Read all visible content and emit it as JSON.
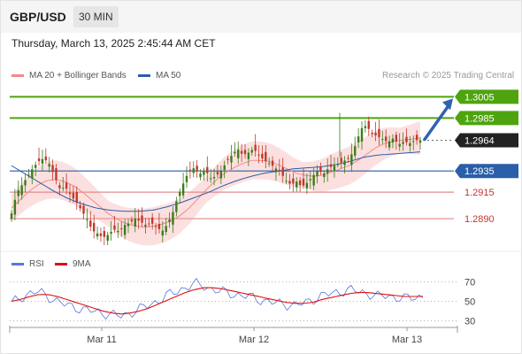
{
  "header": {
    "symbol": "GBP/USD",
    "timeframe": "30 MIN"
  },
  "datetime": "Thursday, March 13, 2025 2:45:44 AM CET",
  "legend": {
    "main": [
      {
        "label": "MA 20 + Bollinger Bands",
        "color": "#f08a8a"
      },
      {
        "label": "MA 50",
        "color": "#2a5ea8"
      }
    ],
    "rsi": [
      {
        "label": "RSI",
        "color": "#5577dd"
      },
      {
        "label": "9MA",
        "color": "#dd1111"
      }
    ]
  },
  "copyright": "Research © 2025 Trading Central",
  "colors": {
    "up": "#3a7d1a",
    "down": "#c0392b",
    "green_level": "#4ea40f",
    "blue_level": "#2a5ea8",
    "red_level": "#e38b8b",
    "arrow": "#2f63b0"
  },
  "chart_data": [
    {
      "type": "candlestick",
      "title": "GBP/USD 30 MIN",
      "x_ticks": [
        "Mar 11",
        "Mar 12",
        "Mar 13"
      ],
      "ylim": [
        1.286,
        1.3017
      ],
      "current_price": "1.2964",
      "levels": [
        {
          "label": "1.3005",
          "value": 1.3005,
          "kind": "resistance",
          "badge": true
        },
        {
          "label": "1.2985",
          "value": 1.2985,
          "kind": "resistance",
          "badge": true
        },
        {
          "label": "1.2964",
          "value": 1.2964,
          "kind": "last",
          "badge": true
        },
        {
          "label": "1.2935",
          "value": 1.2935,
          "kind": "pivot",
          "badge": true
        },
        {
          "label": "1.2915",
          "value": 1.2915,
          "kind": "support",
          "badge": false
        },
        {
          "label": "1.2890",
          "value": 1.289,
          "kind": "support",
          "badge": false
        }
      ],
      "close_path": [
        1.2895,
        1.2915,
        1.2922,
        1.293,
        1.2938,
        1.2944,
        1.2947,
        1.2942,
        1.293,
        1.2918,
        1.292,
        1.2912,
        1.2906,
        1.2898,
        1.289,
        1.2879,
        1.2876,
        1.2872,
        1.2875,
        1.288,
        1.2878,
        1.2884,
        1.2886,
        1.289,
        1.2887,
        1.2884,
        1.2886,
        1.2882,
        1.2878,
        1.2885,
        1.2896,
        1.2912,
        1.2924,
        1.2935,
        1.2938,
        1.2932,
        1.2936,
        1.2928,
        1.293,
        1.2935,
        1.2944,
        1.295,
        1.2956,
        1.295,
        1.2952,
        1.2956,
        1.295,
        1.2945,
        1.2942,
        1.2938,
        1.2934,
        1.2926,
        1.2922,
        1.2925,
        1.292,
        1.2924,
        1.293,
        1.2936,
        1.2932,
        1.2938,
        1.294,
        1.2942,
        1.2945,
        1.2948,
        1.296,
        1.2975,
        1.2978,
        1.297,
        1.2968,
        1.2965,
        1.2962,
        1.2966,
        1.296,
        1.2963,
        1.2961,
        1.2964,
        1.2964
      ],
      "ma20_path": [
        1.29,
        1.2908,
        1.2916,
        1.2922,
        1.2926,
        1.2927,
        1.2925,
        1.2921,
        1.2915,
        1.2908,
        1.2901,
        1.2894,
        1.2889,
        1.2885,
        1.2883,
        1.2882,
        1.2883,
        1.2885,
        1.2888,
        1.2893,
        1.29,
        1.2909,
        1.2918,
        1.2926,
        1.2933,
        1.2938,
        1.2942,
        1.2945,
        1.2945,
        1.2944,
        1.2941,
        1.2937,
        1.2933,
        1.2931,
        1.293,
        1.2931,
        1.2934,
        1.2937,
        1.294,
        1.2945,
        1.2951,
        1.2957,
        1.2961,
        1.2963,
        1.2964,
        1.2965,
        1.2966
      ],
      "ma50_path": [
        1.294,
        1.2932,
        1.2924,
        1.2916,
        1.2909,
        1.2904,
        1.29,
        1.2898,
        1.2897,
        1.2897,
        1.2898,
        1.2901,
        1.2905,
        1.291,
        1.2915,
        1.2921,
        1.2926,
        1.293,
        1.2933,
        1.2935,
        1.2937,
        1.2938,
        1.2939,
        1.2941,
        1.2944,
        1.2948,
        1.295,
        1.2951,
        1.2952,
        1.2953
      ],
      "forecast_arrow": [
        1.2964,
        1.3005
      ]
    },
    {
      "type": "line",
      "title": "RSI",
      "ylim": [
        25,
        75
      ],
      "y_ticks": [
        "70",
        "50",
        "30"
      ],
      "series": [
        {
          "name": "RSI",
          "values": [
            48,
            54,
            58,
            60,
            55,
            50,
            46,
            44,
            41,
            40,
            38,
            36,
            35,
            38,
            42,
            46,
            50,
            56,
            60,
            64,
            68,
            66,
            62,
            60,
            58,
            56,
            55,
            52,
            50,
            48,
            47,
            46,
            48,
            52,
            56,
            58,
            60,
            62,
            60,
            58,
            55,
            56,
            54,
            53,
            54,
            55
          ]
        },
        {
          "name": "9MA",
          "values": [
            50,
            52,
            55,
            57,
            57,
            55,
            52,
            49,
            46,
            43,
            40,
            38,
            37,
            38,
            40,
            43,
            47,
            51,
            55,
            59,
            62,
            64,
            64,
            63,
            61,
            59,
            57,
            55,
            53,
            51,
            49,
            48,
            48,
            49,
            52,
            54,
            56,
            58,
            59,
            59,
            58,
            57,
            56,
            55,
            55,
            55
          ]
        }
      ]
    }
  ]
}
